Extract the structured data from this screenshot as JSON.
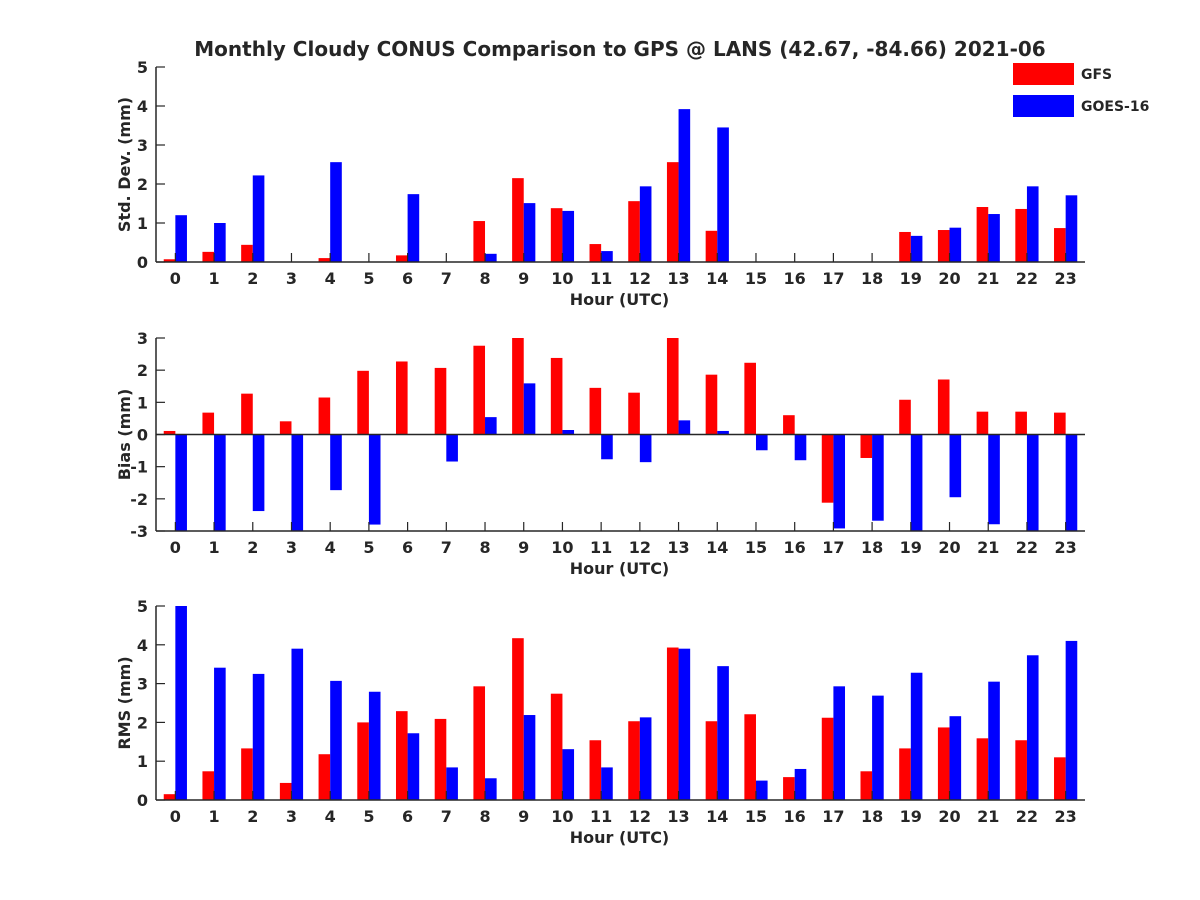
{
  "figure": {
    "title": "Monthly Cloudy CONUS Comparison to GPS @ LANS (42.67, -84.66) 2021-06"
  },
  "legend": {
    "position": "top-right",
    "items": [
      {
        "label": "GFS",
        "color": "#ff0000"
      },
      {
        "label": "GOES-16",
        "color": "#0000ff"
      }
    ]
  },
  "colors": {
    "gfs": "#ff0000",
    "goes16": "#0000ff",
    "axis": "#262626"
  },
  "chart_data": [
    {
      "type": "bar",
      "xlabel": "Hour (UTC)",
      "ylabel": "Std. Dev. (mm)",
      "ylim": [
        0,
        5
      ],
      "yticks": [
        0,
        1,
        2,
        3,
        4,
        5
      ],
      "categories": [
        "0",
        "1",
        "2",
        "3",
        "4",
        "5",
        "6",
        "7",
        "8",
        "9",
        "10",
        "11",
        "12",
        "13",
        "14",
        "15",
        "16",
        "17",
        "18",
        "19",
        "20",
        "21",
        "22",
        "23"
      ],
      "series": [
        {
          "name": "GFS",
          "values": [
            0.07,
            0.26,
            0.44,
            0,
            0.1,
            0,
            0.17,
            0,
            1.05,
            2.15,
            1.38,
            0.46,
            1.56,
            2.56,
            0.8,
            0,
            0,
            0,
            0,
            0.77,
            0.82,
            1.41,
            1.36,
            0.87
          ]
        },
        {
          "name": "GOES-16",
          "values": [
            1.2,
            1.0,
            2.22,
            0,
            2.56,
            0,
            1.74,
            0,
            0.21,
            1.51,
            1.31,
            0.28,
            1.94,
            3.92,
            3.45,
            0,
            0,
            0,
            0,
            0.67,
            0.88,
            1.23,
            1.94,
            1.71
          ]
        }
      ]
    },
    {
      "type": "bar",
      "xlabel": "Hour (UTC)",
      "ylabel": "Bias (mm)",
      "ylim": [
        -3,
        3
      ],
      "yticks": [
        -3,
        -2,
        -1,
        0,
        1,
        2,
        3
      ],
      "categories": [
        "0",
        "1",
        "2",
        "3",
        "4",
        "5",
        "6",
        "7",
        "8",
        "9",
        "10",
        "11",
        "12",
        "13",
        "14",
        "15",
        "16",
        "17",
        "18",
        "19",
        "20",
        "21",
        "22",
        "23"
      ],
      "series": [
        {
          "name": "GFS",
          "values": [
            0.11,
            0.68,
            1.27,
            0.41,
            1.15,
            1.98,
            2.27,
            2.07,
            2.76,
            3.0,
            2.38,
            1.45,
            1.3,
            3.0,
            1.86,
            2.23,
            0.6,
            -2.12,
            -0.73,
            1.08,
            1.71,
            0.71,
            0.71,
            0.68
          ]
        },
        {
          "name": "GOES-16",
          "values": [
            -3.0,
            -3.0,
            -2.38,
            -3.0,
            -1.73,
            -2.8,
            0,
            -0.84,
            0.54,
            1.59,
            0.14,
            -0.77,
            -0.86,
            0.44,
            0.11,
            -0.49,
            -0.8,
            -2.92,
            -2.68,
            -3.0,
            -1.95,
            -2.79,
            -3.0,
            -3.0
          ]
        }
      ]
    },
    {
      "type": "bar",
      "xlabel": "Hour (UTC)",
      "ylabel": "RMS (mm)",
      "ylim": [
        0,
        5
      ],
      "yticks": [
        0,
        1,
        2,
        3,
        4,
        5
      ],
      "categories": [
        "0",
        "1",
        "2",
        "3",
        "4",
        "5",
        "6",
        "7",
        "8",
        "9",
        "10",
        "11",
        "12",
        "13",
        "14",
        "15",
        "16",
        "17",
        "18",
        "19",
        "20",
        "21",
        "22",
        "23"
      ],
      "series": [
        {
          "name": "GFS",
          "values": [
            0.15,
            0.74,
            1.33,
            0.44,
            1.18,
            2.0,
            2.29,
            2.09,
            2.93,
            4.17,
            2.74,
            1.54,
            2.03,
            3.93,
            2.03,
            2.21,
            0.59,
            2.12,
            0.74,
            1.33,
            1.87,
            1.59,
            1.54,
            1.1
          ]
        },
        {
          "name": "GOES-16",
          "values": [
            5.0,
            3.41,
            3.25,
            3.9,
            3.07,
            2.79,
            1.72,
            0.84,
            0.56,
            2.19,
            1.31,
            0.84,
            2.13,
            3.9,
            3.45,
            0.5,
            0.8,
            2.93,
            2.69,
            3.28,
            2.16,
            3.05,
            3.73,
            4.1
          ]
        }
      ]
    }
  ]
}
